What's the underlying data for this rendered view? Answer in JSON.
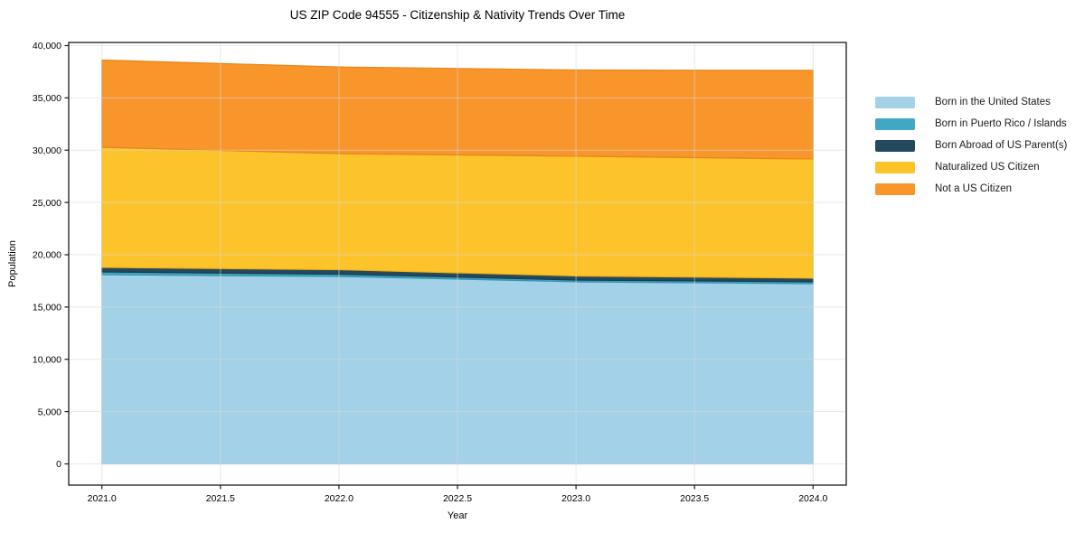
{
  "title": "US ZIP Code 94555 - Citizenship & Nativity Trends Over Time",
  "axes": {
    "xlabel": "Year",
    "ylabel": "Population",
    "xtick_labels": [
      "2021.0",
      "2021.5",
      "2022.0",
      "2022.5",
      "2023.0",
      "2023.5",
      "2024.0"
    ],
    "ytick_labels": [
      "0",
      "5,000",
      "10,000",
      "15,000",
      "20,000",
      "25,000",
      "30,000",
      "35,000",
      "40,000"
    ]
  },
  "chart_data": {
    "type": "area",
    "stacked": true,
    "title": "US ZIP Code 94555 - Citizenship & Nativity Trends Over Time",
    "xlabel": "Year",
    "ylabel": "Population",
    "x": [
      2021,
      2022,
      2023,
      2024
    ],
    "series": [
      {
        "name": "Born in the United States",
        "color": "#A3D2E8",
        "edge": "#8CC3DC",
        "values": [
          18100,
          17920,
          17410,
          17230
        ]
      },
      {
        "name": "Born in Puerto Rico / Islands",
        "color": "#41A7C4",
        "edge": "#3494B1",
        "values": [
          260,
          220,
          170,
          180
        ]
      },
      {
        "name": "Born Abroad of US Parent(s)",
        "color": "#24495E",
        "edge": "#1B3A4C",
        "values": [
          430,
          430,
          390,
          350
        ]
      },
      {
        "name": "Naturalized US Citizen",
        "color": "#FDC32B",
        "edge": "#EFB116",
        "values": [
          11490,
          11100,
          11450,
          11400
        ]
      },
      {
        "name": "Not a US Citizen",
        "color": "#F8952B",
        "edge": "#EA8414",
        "values": [
          8340,
          8290,
          8250,
          8470
        ]
      }
    ],
    "stacked_totals": [
      38620,
      37960,
      37670,
      37630
    ],
    "xlim": [
      2021,
      2024
    ],
    "ylim": [
      0,
      40000
    ],
    "grid": true,
    "legend_position": "right outside"
  },
  "style": {
    "grid_color": "#d9d9d9",
    "spine_color": "#1a1a1a",
    "plot_bg": "#ffffff"
  }
}
